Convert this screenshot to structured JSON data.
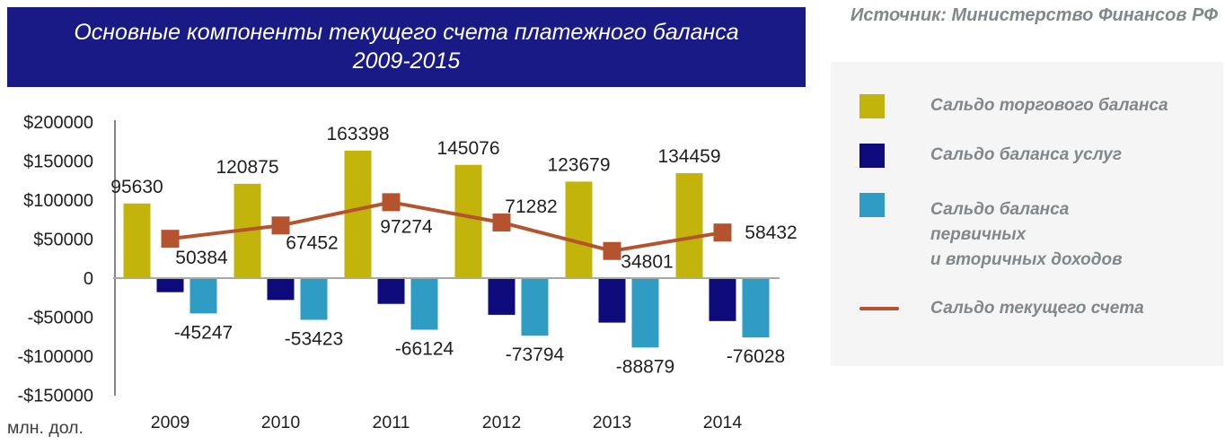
{
  "title": {
    "line1": "Основные компоненты текущего счета платежного баланса",
    "line2": "2009-2015"
  },
  "source": "Источник: Министерство Финансов РФ",
  "colors": {
    "banner_bg": "#1a1a87",
    "legend_bg": "#f5f5f6",
    "trade": "#c3b40b",
    "services": "#0d0a7b",
    "income": "#2f9cc4",
    "current": "#b5532f",
    "axis_line": "#858585",
    "zero_line": "#a7a7a7",
    "text": "#1f1f1f"
  },
  "legend": {
    "items": [
      {
        "id": "trade",
        "marker": "square",
        "color": "#c3b40b",
        "label_lines": [
          "Сальдо торгового баланса"
        ]
      },
      {
        "id": "services",
        "marker": "square",
        "color": "#0d0a7b",
        "label_lines": [
          "Сальдо баланса услуг"
        ]
      },
      {
        "id": "income",
        "marker": "square",
        "color": "#2f9cc4",
        "label_lines": [
          "Сальдо баланса",
          "первичных",
          "и вторичных доходов"
        ]
      },
      {
        "id": "current",
        "marker": "line",
        "color": "#b5532f",
        "label_lines": [
          "Сальдо текущего счета"
        ]
      }
    ]
  },
  "chart_data": {
    "type": "bar+line",
    "title": "Основные компоненты текущего счета платежного баланса 2009-2015",
    "categories": [
      "2009",
      "2010",
      "2011",
      "2012",
      "2013",
      "2014"
    ],
    "series": [
      {
        "id": "trade",
        "name": "Сальдо торгового баланса",
        "kind": "bar",
        "color": "#c3b40b",
        "values": [
          95630,
          120875,
          163398,
          145076,
          123679,
          134459
        ],
        "labels_visible": true
      },
      {
        "id": "services",
        "name": "Сальдо баланса услуг",
        "kind": "bar",
        "color": "#0d0a7b",
        "values": [
          -18000,
          -28000,
          -33000,
          -47000,
          -57000,
          -55000
        ],
        "estimated": true,
        "labels_visible": false
      },
      {
        "id": "income",
        "name": "Сальдо баланса первичных и вторичных доходов",
        "kind": "bar",
        "color": "#2f9cc4",
        "values": [
          -45247,
          -53423,
          -66124,
          -73794,
          -88879,
          -76028
        ],
        "labels_visible": true
      },
      {
        "id": "current",
        "name": "Сальдо текущего счета",
        "kind": "line",
        "color": "#b5532f",
        "values": [
          50384,
          67452,
          97274,
          71282,
          34801,
          58432
        ],
        "labels_visible": true,
        "label_offsets": [
          [
            35,
            21
          ],
          [
            35,
            19
          ],
          [
            17,
            27
          ],
          [
            33,
            -18
          ],
          [
            39,
            12
          ],
          [
            54,
            0
          ]
        ]
      }
    ],
    "y_ticks": [
      {
        "label": "$200000",
        "value": 200000
      },
      {
        "label": "$150000",
        "value": 150000
      },
      {
        "label": "$100000",
        "value": 100000
      },
      {
        "label": "$50000",
        "value": 50000
      },
      {
        "label": "0",
        "value": 0
      },
      {
        "label": "-$50000",
        "value": -50000
      },
      {
        "label": "-$100000",
        "value": -100000
      },
      {
        "label": "-$150000",
        "value": -150000
      }
    ],
    "ylim": [
      -150000,
      200000
    ],
    "xlabel": "",
    "ylabel": "млн. дол.",
    "grid": false,
    "legend_position": "right"
  }
}
